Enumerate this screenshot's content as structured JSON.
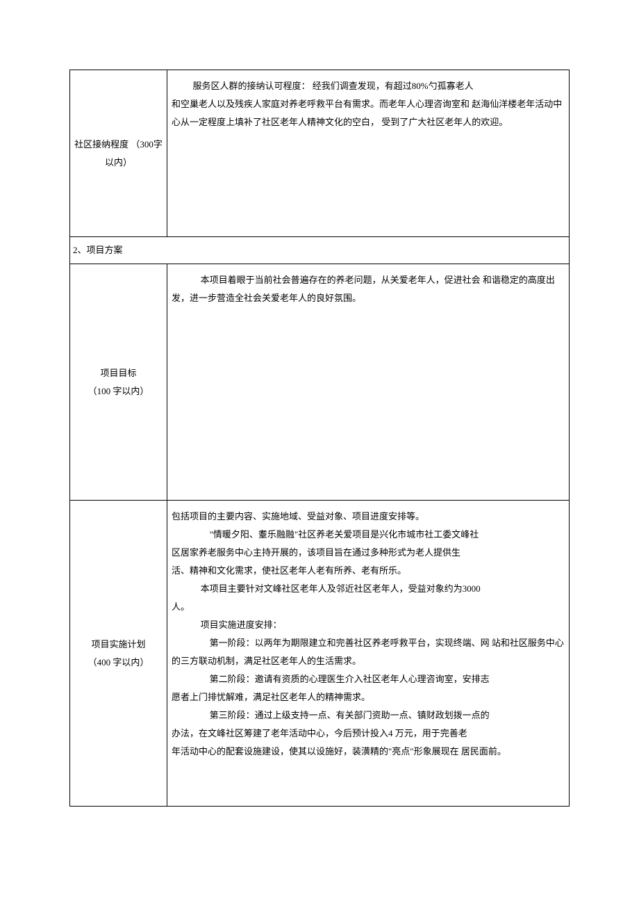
{
  "doc": {
    "row1": {
      "label": "社区接纳程度 （300字以内）",
      "line1_a": "服务区人群的接纳认可程度：",
      "line1_b": "经我们调查发现，有超过80%勺孤寡老人",
      "line2": "和空巢老人以及残疾人家庭对养老呼救平台有需求。而老年人心理咨询室和 赵海仙洋楼老年活动中心从一定程度上填补了社区老年人精神文化的空白， 受到了广大社区老年人的欢迎。"
    },
    "section2": "2、项目方案",
    "row3": {
      "label_l1": "项目目标",
      "label_l2": "（100 字以内）",
      "content": "本项目着眼于当前社会普遍存在的养老问题，从关爱老年人，促进社会 和谐稳定的高度出发，进一步营造全社会关爱老年人的良好氛围。"
    },
    "row4": {
      "label_l1": "项目实施计划",
      "label_l2": "（400 字以内）",
      "l1": "包括项目的主要内容、实施地域、受益对象、项目进度安排等。",
      "l2": "\"情暖夕阳、耋乐融融\"社区养老关爱项目是兴化市城市社工委文峰社",
      "l3": "区居家养老服务中心主持开展的，该项目旨在通过多种形式为老人提供生",
      "l4": "活、精神和文化需求，使社区老年人老有所养、老有所乐。",
      "l5": "本项目主要针对文峰社区老年人及邻近社区老年人，受益对象约为3000",
      "l6": "人。",
      "l7": "项目实施进度安排：",
      "l8": "第一阶段：以两年为期限建立和完善社区养老呼救平台，实现终端、网 站和社区服务中心的三方联动机制，满足社区老年人的生活需求。",
      "l9": "第二阶段：邀请有资质的心理医生介入社区老年人心理咨询室，安排志",
      "l10": "愿者上门排忧解难，满足社区老年人的精神需求。",
      "l11": "第三阶段：通过上级支持一点、有关部门资助一点、镇财政划拨一点的",
      "l12": "办法，在文峰社区筹建了老年活动中心，今后预计投入4 万元，用于完善老",
      "l13": "年活动中心的配套设施建设，使其以设施好，装潢精的\"亮点\"形象展现在 居民面前。"
    }
  },
  "style": {
    "font_family": "SimSun",
    "font_size_body": 13,
    "border_color": "#000000",
    "background": "#ffffff",
    "line_height": 2.0,
    "label_col_width": 140
  }
}
